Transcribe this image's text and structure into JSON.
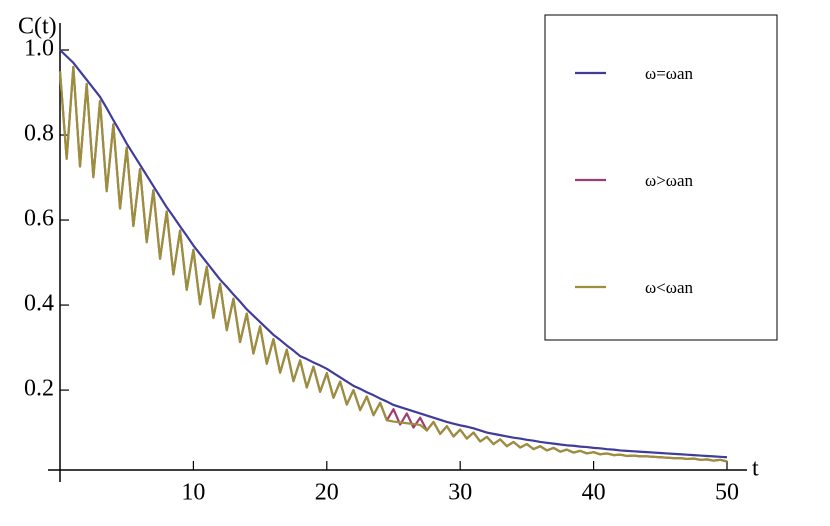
{
  "chart_data": {
    "type": "line",
    "x_label": "t",
    "y_label": "C(t)",
    "x": [
      0,
      0.5,
      1,
      1.5,
      2,
      2.5,
      3,
      3.5,
      4,
      4.5,
      5,
      5.5,
      6,
      6.5,
      7,
      7.5,
      8,
      8.5,
      9,
      9.5,
      10,
      10.5,
      11,
      11.5,
      12,
      12.5,
      13,
      13.5,
      14,
      14.5,
      15,
      15.5,
      16,
      16.5,
      17,
      17.5,
      18,
      18.5,
      19,
      19.5,
      20,
      20.5,
      21,
      21.5,
      22,
      22.5,
      23,
      23.5,
      24,
      24.5,
      25,
      25.5,
      26,
      26.5,
      27,
      27.5,
      28,
      28.5,
      29,
      29.5,
      30,
      30.5,
      31,
      31.5,
      32,
      32.5,
      33,
      33.5,
      34,
      34.5,
      35,
      35.5,
      36,
      36.5,
      37,
      37.5,
      38,
      38.5,
      39,
      39.5,
      40,
      40.5,
      41,
      41.5,
      42,
      42.5,
      43,
      43.5,
      44,
      44.5,
      45,
      45.5,
      46,
      46.5,
      47,
      47.5,
      48,
      48.5,
      49,
      49.5,
      50
    ],
    "series": [
      {
        "name": "ω=ωan",
        "color": "#3f3d99",
        "values": [
          1.0,
          0.985,
          0.97,
          0.95,
          0.93,
          0.91,
          0.89,
          0.863,
          0.835,
          0.808,
          0.78,
          0.755,
          0.73,
          0.705,
          0.68,
          0.655,
          0.63,
          0.608,
          0.585,
          0.563,
          0.54,
          0.52,
          0.5,
          0.48,
          0.46,
          0.443,
          0.425,
          0.408,
          0.39,
          0.375,
          0.36,
          0.345,
          0.33,
          0.318,
          0.305,
          0.293,
          0.28,
          0.273,
          0.265,
          0.258,
          0.25,
          0.24,
          0.23,
          0.22,
          0.21,
          0.203,
          0.195,
          0.188,
          0.18,
          0.173,
          0.165,
          0.16,
          0.155,
          0.15,
          0.145,
          0.14,
          0.135,
          0.13,
          0.125,
          0.121,
          0.117,
          0.114,
          0.11,
          0.105,
          0.1,
          0.097,
          0.094,
          0.091,
          0.088,
          0.086,
          0.083,
          0.081,
          0.078,
          0.076,
          0.074,
          0.072,
          0.07,
          0.069,
          0.067,
          0.066,
          0.064,
          0.063,
          0.061,
          0.06,
          0.058,
          0.057,
          0.056,
          0.055,
          0.054,
          0.053,
          0.052,
          0.051,
          0.05,
          0.049,
          0.048,
          0.047,
          0.046,
          0.045,
          0.044,
          0.043,
          0.042
        ]
      },
      {
        "name": "ω>ωan",
        "color": "#9e3d73",
        "values": [
          0.95,
          0.744,
          0.96,
          0.726,
          0.92,
          0.701,
          0.88,
          0.668,
          0.825,
          0.627,
          0.77,
          0.586,
          0.72,
          0.548,
          0.67,
          0.509,
          0.62,
          0.472,
          0.575,
          0.436,
          0.53,
          0.402,
          0.49,
          0.37,
          0.45,
          0.341,
          0.415,
          0.313,
          0.38,
          0.286,
          0.35,
          0.262,
          0.32,
          0.241,
          0.295,
          0.221,
          0.27,
          0.206,
          0.255,
          0.196,
          0.24,
          0.182,
          0.22,
          0.166,
          0.2,
          0.153,
          0.185,
          0.141,
          0.17,
          0.129,
          0.155,
          0.119,
          0.145,
          0.112,
          0.135,
          0.105,
          0.125,
          0.097,
          0.115,
          0.091,
          0.107,
          0.086,
          0.1,
          0.079,
          0.09,
          0.073,
          0.084,
          0.068,
          0.078,
          0.065,
          0.073,
          0.061,
          0.068,
          0.058,
          0.064,
          0.055,
          0.06,
          0.053,
          0.057,
          0.051,
          0.054,
          0.049,
          0.051,
          0.047,
          0.048,
          0.045,
          0.046,
          0.044,
          0.044,
          0.043,
          0.042,
          0.041,
          0.04,
          0.04,
          0.038,
          0.039,
          0.036,
          0.037,
          0.034,
          0.036,
          0.032
        ]
      },
      {
        "name": "ω<ωan",
        "color": "#9c8f3c",
        "values": [
          0.95,
          0.744,
          0.96,
          0.726,
          0.92,
          0.701,
          0.88,
          0.668,
          0.825,
          0.627,
          0.77,
          0.586,
          0.72,
          0.548,
          0.67,
          0.509,
          0.62,
          0.472,
          0.575,
          0.436,
          0.53,
          0.402,
          0.49,
          0.37,
          0.45,
          0.341,
          0.415,
          0.313,
          0.38,
          0.286,
          0.35,
          0.262,
          0.32,
          0.241,
          0.295,
          0.221,
          0.27,
          0.206,
          0.255,
          0.196,
          0.24,
          0.182,
          0.22,
          0.166,
          0.2,
          0.153,
          0.185,
          0.141,
          0.17,
          0.129,
          0.126,
          0.124,
          0.122,
          0.12,
          0.118,
          0.105,
          0.125,
          0.097,
          0.115,
          0.091,
          0.107,
          0.086,
          0.1,
          0.079,
          0.09,
          0.073,
          0.084,
          0.068,
          0.078,
          0.065,
          0.073,
          0.061,
          0.068,
          0.058,
          0.064,
          0.055,
          0.06,
          0.053,
          0.057,
          0.051,
          0.054,
          0.049,
          0.051,
          0.047,
          0.048,
          0.045,
          0.046,
          0.044,
          0.044,
          0.043,
          0.042,
          0.041,
          0.04,
          0.04,
          0.038,
          0.039,
          0.036,
          0.037,
          0.034,
          0.036,
          0.032
        ]
      }
    ],
    "xlim": [
      0,
      51.5
    ],
    "ylim": [
      0.012,
      1.04
    ],
    "xticks": [
      10,
      20,
      30,
      40,
      50
    ],
    "yticks": [
      0.2,
      0.4,
      0.6,
      0.8,
      {
        "value": 1,
        "label": "1.0"
      }
    ],
    "legend": "top-right"
  }
}
